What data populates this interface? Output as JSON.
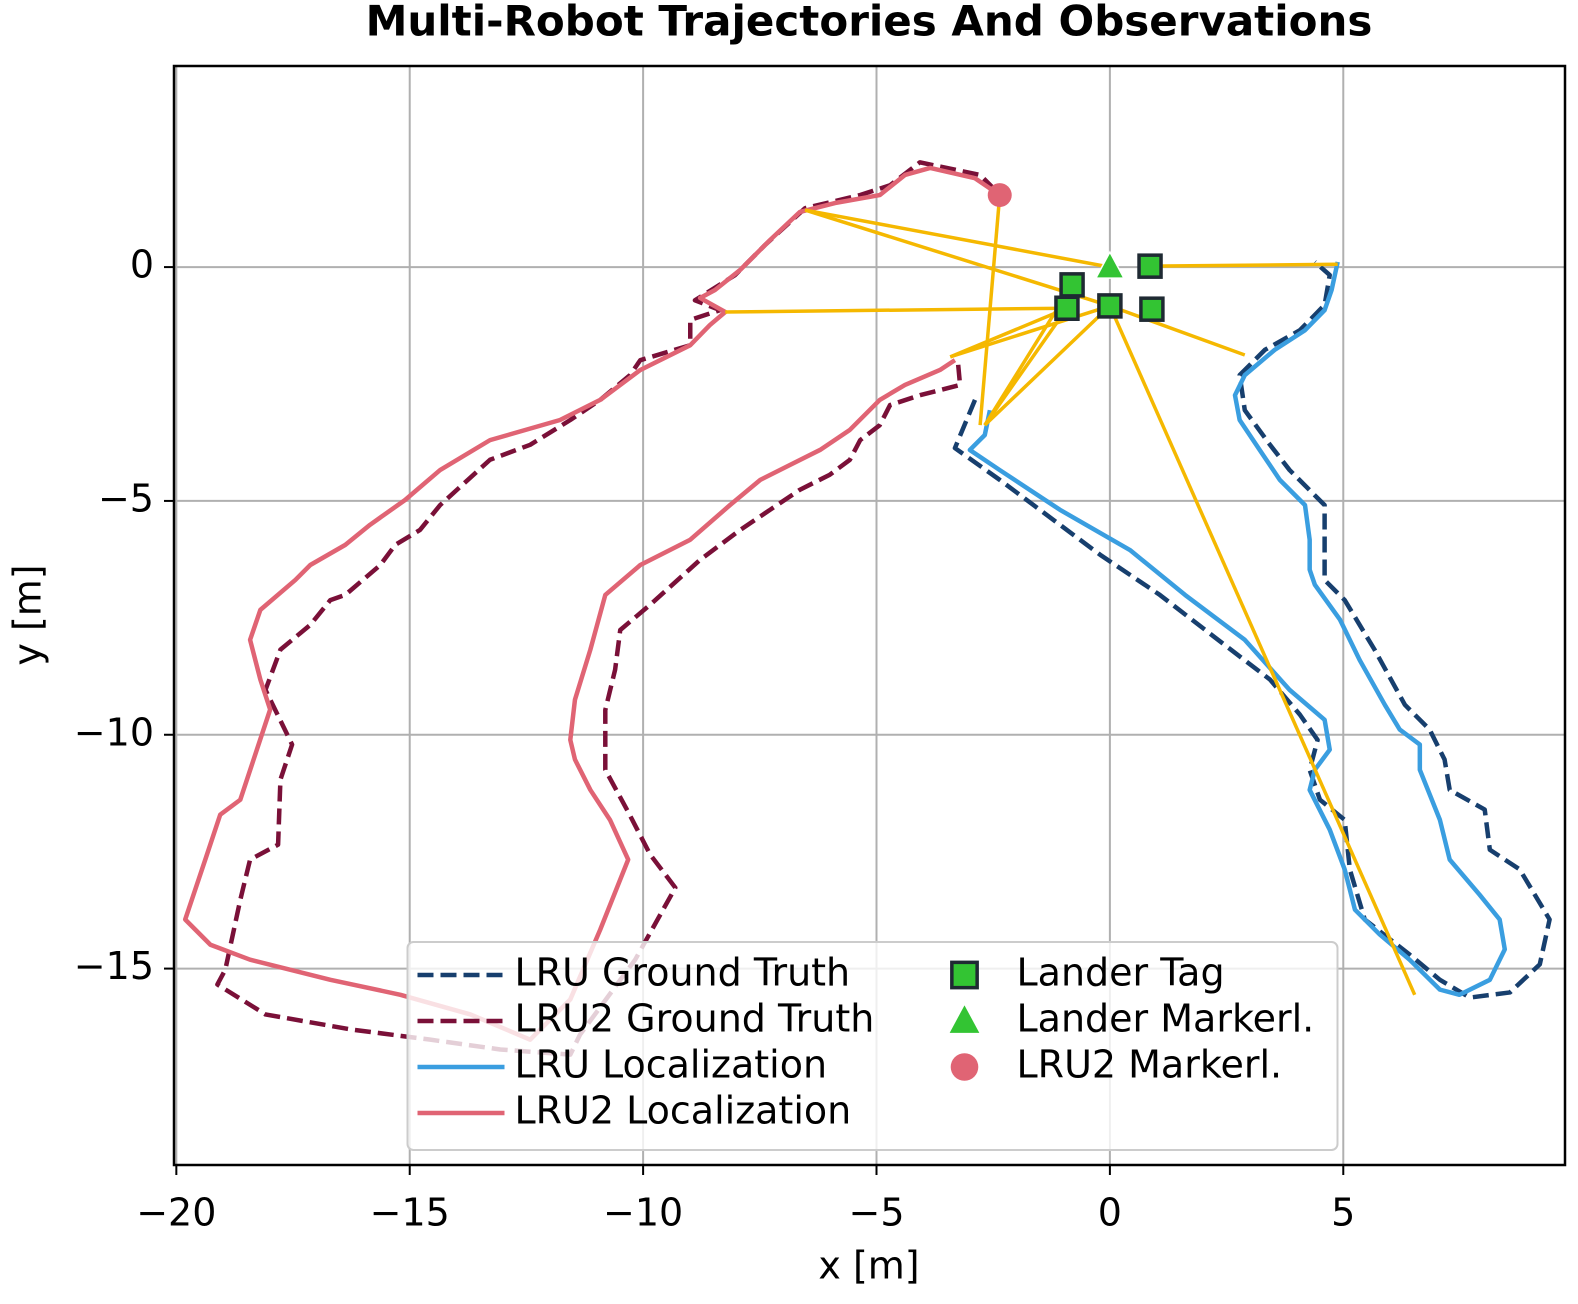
{
  "chart_data": {
    "type": "line",
    "title": "Multi-Robot Trajectories And Observations",
    "xlabel": "x [m]",
    "ylabel": "y [m]",
    "xlim": [
      -20.05,
      9.75
    ],
    "ylim": [
      -19.2,
      4.3
    ],
    "xticks": [
      {
        "value": -20,
        "label": "−20"
      },
      {
        "value": -15,
        "label": "−15"
      },
      {
        "value": -10,
        "label": "−10"
      },
      {
        "value": -5,
        "label": "−5"
      },
      0,
      5
    ],
    "yticks": [
      0,
      {
        "value": -5,
        "label": "−5"
      },
      {
        "value": -10,
        "label": "−10"
      },
      {
        "value": -15,
        "label": "−15"
      }
    ],
    "grid": true,
    "legend": "lower center",
    "series": [
      {
        "name": "LRU Ground Truth",
        "color": "#173f6e",
        "dashed": true,
        "x": [
          -2.89,
          -3.32,
          -2.36,
          -0.21,
          1.07,
          2.46,
          3.43,
          4.07,
          4.45,
          4.28,
          4.5,
          5.03,
          5.14,
          5.46,
          6.42,
          7.07,
          7.71,
          8.57,
          9.21,
          9.42,
          8.78,
          8.14,
          8.03,
          7.28,
          7.17,
          6.85,
          6.32,
          5.67,
          5.03,
          4.6,
          4.6,
          3.85,
          3.43,
          2.89,
          2.78,
          3.32,
          4.07,
          4.6,
          4.71,
          4.39
        ],
        "y": [
          -2.84,
          -3.87,
          -4.55,
          -6.15,
          -7.01,
          -8.08,
          -8.82,
          -9.57,
          -10.11,
          -10.75,
          -11.39,
          -11.82,
          -12.88,
          -13.95,
          -14.7,
          -15.24,
          -15.62,
          -15.51,
          -14.91,
          -13.95,
          -12.88,
          -12.46,
          -11.6,
          -11.18,
          -10.53,
          -9.89,
          -9.36,
          -8.18,
          -7.12,
          -6.69,
          -5.09,
          -4.34,
          -3.8,
          -3.06,
          -2.31,
          -1.77,
          -1.35,
          -0.81,
          -0.17,
          0.11
        ]
      },
      {
        "name": "LRU2 Ground Truth",
        "color": "#7a1038",
        "dashed": true,
        "x": [
          -2.46,
          -2.78,
          -4.07,
          -4.71,
          -5.35,
          -6.53,
          -7.39,
          -8.03,
          -8.89,
          -8.35,
          -8.99,
          -8.99,
          -10.06,
          -10.28,
          -10.92,
          -11.56,
          -12.42,
          -13.28,
          -14.35,
          -14.78,
          -15.31,
          -15.63,
          -16.38,
          -16.7,
          -17.13,
          -17.77,
          -18.09,
          -17.52,
          -17.77,
          -17.82,
          -18.42,
          -18.63,
          -18.95,
          -19.12,
          -18.09,
          -16.27,
          -14.56,
          -13.06,
          -11.56,
          -11.35,
          -10.17,
          -9.31,
          -9.85,
          -10.32,
          -10.81,
          -10.81,
          -10.6,
          -10.49,
          -9.85,
          -8.78,
          -7.92,
          -7.28,
          -6.64,
          -6.0,
          -5.57,
          -5.35,
          -4.93,
          -4.71,
          -4.07,
          -3.21,
          -3.25
        ],
        "y": [
          1.65,
          1.97,
          2.24,
          1.75,
          1.54,
          1.26,
          0.47,
          -0.17,
          -0.71,
          -0.92,
          -1.13,
          -1.67,
          -1.99,
          -2.31,
          -2.84,
          -3.27,
          -3.8,
          -4.12,
          -5.09,
          -5.62,
          -5.94,
          -6.37,
          -7.01,
          -7.12,
          -7.65,
          -8.18,
          -9.04,
          -10.21,
          -10.96,
          -12.35,
          -12.67,
          -13.53,
          -15.02,
          -15.34,
          -15.98,
          -16.3,
          -16.52,
          -16.73,
          -16.84,
          -16.41,
          -14.81,
          -13.27,
          -12.56,
          -11.65,
          -10.75,
          -9.47,
          -8.61,
          -7.76,
          -7.22,
          -6.26,
          -5.62,
          -5.19,
          -4.76,
          -4.44,
          -4.12,
          -3.7,
          -3.38,
          -2.95,
          -2.74,
          -2.52,
          -2.09
        ]
      },
      {
        "name": "LRU Localization",
        "color": "#3a9ee0",
        "dashed": false,
        "x": [
          -2.57,
          -2.68,
          -3.0,
          -2.36,
          -1.07,
          0.43,
          1.61,
          2.89,
          3.85,
          4.6,
          4.71,
          4.39,
          4.28,
          4.71,
          5.03,
          5.25,
          5.78,
          6.42,
          7.07,
          7.49,
          8.14,
          8.46,
          8.35,
          7.92,
          7.28,
          7.07,
          6.64,
          6.64,
          6.21,
          5.89,
          5.35,
          4.93,
          4.39,
          4.28,
          4.28,
          4.18,
          3.64,
          3.21,
          2.78,
          2.68,
          2.89,
          3.53,
          4.18,
          4.6,
          4.75,
          4.88
        ],
        "y": [
          -3.06,
          -3.59,
          -3.91,
          -4.34,
          -5.19,
          -6.05,
          -7.01,
          -7.97,
          -9.04,
          -9.68,
          -10.32,
          -10.75,
          -11.18,
          -12.03,
          -12.88,
          -13.74,
          -14.27,
          -14.81,
          -15.45,
          -15.56,
          -15.24,
          -14.59,
          -13.95,
          -13.42,
          -12.67,
          -11.82,
          -10.75,
          -10.21,
          -9.89,
          -9.36,
          -8.4,
          -7.54,
          -6.79,
          -6.47,
          -5.83,
          -5.09,
          -4.55,
          -3.91,
          -3.27,
          -2.74,
          -2.31,
          -1.77,
          -1.35,
          -0.92,
          -0.49,
          0.11
        ]
      },
      {
        "name": "LRU2 Localization",
        "color": "#e06474",
        "dashed": false,
        "x": [
          -2.36,
          -2.89,
          -3.85,
          -4.39,
          -4.93,
          -5.89,
          -6.64,
          -7.28,
          -7.92,
          -8.46,
          -8.78,
          -8.24,
          -8.57,
          -8.99,
          -10.06,
          -10.92,
          -11.78,
          -13.28,
          -14.35,
          -15.1,
          -15.85,
          -16.38,
          -17.13,
          -17.45,
          -18.2,
          -18.42,
          -18.2,
          -17.99,
          -18.63,
          -19.06,
          -19.38,
          -19.81,
          -19.27,
          -18.42,
          -16.7,
          -15.2,
          -13.7,
          -12.42,
          -11.56,
          -10.92,
          -10.32,
          -10.71,
          -11.13,
          -11.46,
          -11.56,
          -11.46,
          -11.13,
          -10.81,
          -10.06,
          -8.99,
          -8.14,
          -7.49,
          -6.85,
          -6.21,
          -5.57,
          -4.93,
          -4.39,
          -3.64,
          -3.32
        ],
        "y": [
          1.54,
          1.9,
          2.12,
          1.97,
          1.54,
          1.37,
          1.18,
          0.58,
          -0.06,
          -0.49,
          -0.66,
          -0.96,
          -1.24,
          -1.67,
          -2.2,
          -2.84,
          -3.27,
          -3.7,
          -4.34,
          -4.98,
          -5.51,
          -5.94,
          -6.37,
          -6.69,
          -7.33,
          -7.97,
          -8.82,
          -9.46,
          -11.39,
          -11.71,
          -12.67,
          -13.95,
          -14.49,
          -14.81,
          -15.24,
          -15.56,
          -15.98,
          -16.52,
          -15.66,
          -14.17,
          -12.67,
          -11.82,
          -11.18,
          -10.53,
          -10.11,
          -9.25,
          -8.18,
          -7.01,
          -6.37,
          -5.83,
          -5.09,
          -4.55,
          -4.23,
          -3.91,
          -3.48,
          -2.84,
          -2.52,
          -2.2,
          -1.99
        ]
      }
    ],
    "observations": {
      "color": "#f5b800",
      "segments": [
        [
          0.86,
          0.02,
          4.88,
          0.06
        ],
        [
          0,
          -0.83,
          -6.53,
          1.22
        ],
        [
          -0.92,
          -0.88,
          -8.24,
          -0.96
        ],
        [
          0,
          0,
          -6.53,
          1.22
        ],
        [
          -0.92,
          -0.88,
          -3.42,
          -1.92
        ],
        [
          0,
          -0.83,
          -3.42,
          -1.92
        ],
        [
          -2.36,
          1.54,
          -2.78,
          -3.38
        ],
        [
          -0.92,
          -0.88,
          -2.68,
          -3.38
        ],
        [
          0,
          -0.83,
          -2.68,
          -3.38
        ],
        [
          -0.81,
          -0.38,
          -2.68,
          -3.38
        ],
        [
          0,
          -0.83,
          2.89,
          -1.88
        ],
        [
          0,
          -0.83,
          6.53,
          -15.56
        ]
      ]
    },
    "markers": [
      {
        "name": "Lander Tag",
        "marker": "square",
        "color": "#33c433",
        "x": [
          0.86,
          -0.81,
          -0.92,
          0,
          0.9
        ],
        "y": [
          0.02,
          -0.38,
          -0.88,
          -0.83,
          -0.9
        ]
      },
      {
        "name": "Lander Markerl.",
        "marker": "triangle",
        "color": "#33c433",
        "x": [
          0
        ],
        "y": [
          0
        ]
      },
      {
        "name": "LRU2 Markerl.",
        "marker": "circle",
        "color": "#e06474",
        "x": [
          -2.36
        ],
        "y": [
          1.54
        ]
      }
    ]
  }
}
